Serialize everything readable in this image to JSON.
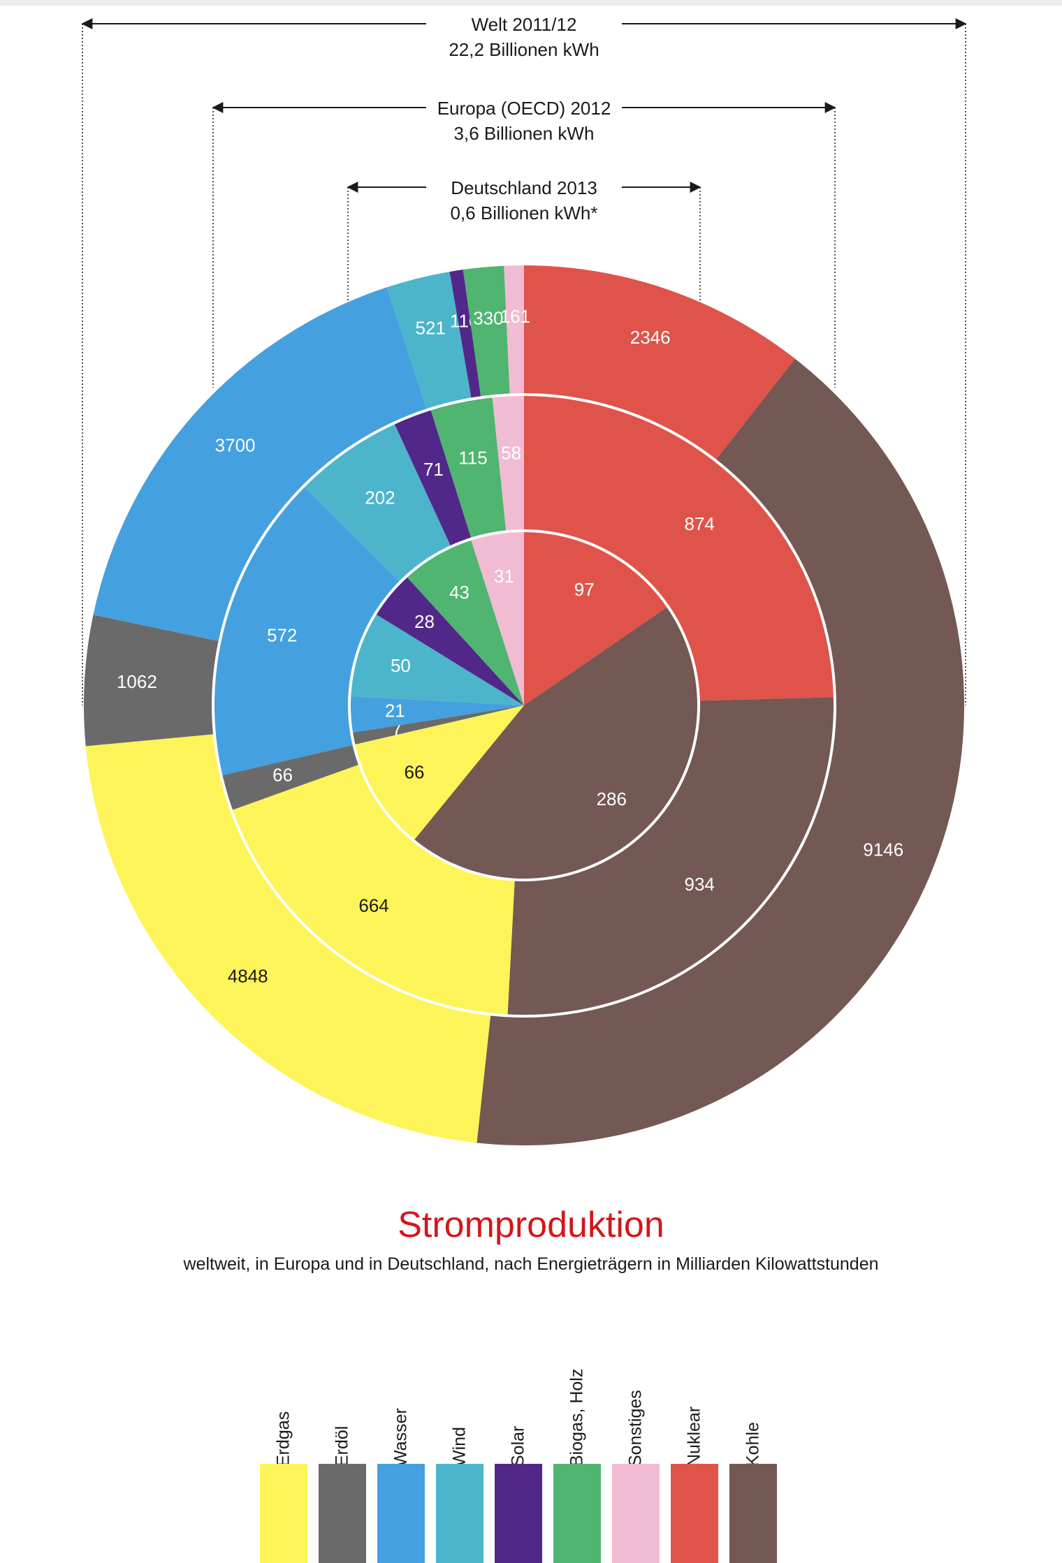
{
  "chart_data": {
    "type": "pie",
    "subtype": "nested-donut",
    "title": "Stromproduktion",
    "subtitle": "weltweit, in Europa und in Deutschland, nach Energieträgern in Milliarden Kilowattstunden",
    "categories": [
      "Nuklear",
      "Kohle",
      "Erdgas",
      "Erdöl",
      "Wasser",
      "Wind",
      "Solar",
      "Biogas, Holz",
      "Sonstiges"
    ],
    "colors": {
      "Nuklear": "#e0534a",
      "Kohle": "#735854",
      "Erdgas": "#fdf45a",
      "Erdöl": "#6a6a6a",
      "Wasser": "#44a0df",
      "Wind": "#4cb5cb",
      "Solar": "#52278a",
      "Biogas, Holz": "#4fb571",
      "Sonstiges": "#f2bbd4"
    },
    "series": [
      {
        "name": "Deutschland",
        "header": [
          "Deutschland 2013",
          "0,6 Billionen kWh*"
        ],
        "values": [
          97,
          286,
          66,
          7,
          21,
          50,
          28,
          43,
          31
        ]
      },
      {
        "name": "Europa",
        "header": [
          "Europa (OECD) 2012",
          "3,6 Billionen kWh"
        ],
        "values": [
          874,
          934,
          664,
          66,
          572,
          202,
          71,
          115,
          58
        ]
      },
      {
        "name": "Welt",
        "header": [
          "Welt 2011/12",
          "22,2 Billionen kWh"
        ],
        "values": [
          2346,
          9146,
          4848,
          1062,
          3700,
          521,
          110,
          330,
          161
        ]
      }
    ],
    "legend_order": [
      "Erdgas",
      "Erdöl",
      "Wasser",
      "Wind",
      "Solar",
      "Biogas, Holz",
      "Sonstiges",
      "Nuklear",
      "Kohle"
    ],
    "legend_position": "bottom"
  }
}
